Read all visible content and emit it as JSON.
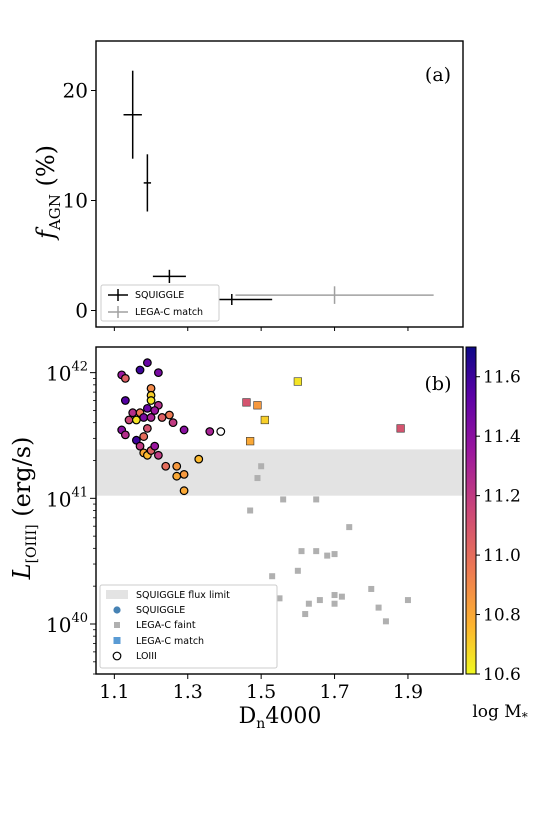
{
  "chart_data": [
    {
      "type": "scatter",
      "panel_label": "(a)",
      "ylabel_main": "f",
      "ylabel_sub": "AGN",
      "ylabel_tail": " (%)",
      "xlim": [
        1.05,
        2.05
      ],
      "ylim": [
        -1.5,
        24.5
      ],
      "yticks": [
        "0",
        "10",
        "20"
      ],
      "ytick_values": [
        0,
        10,
        20
      ],
      "grid": false,
      "legend_position": "bottom-left",
      "series": [
        {
          "name": "SQUIGGLE",
          "color": "#000000",
          "points": [
            {
              "x": 1.15,
              "y": 17.8,
              "xerr": [
                0.025,
                0.025
              ],
              "yerr": [
                4.0,
                4.0
              ]
            },
            {
              "x": 1.19,
              "y": 11.6,
              "xerr": [
                0.01,
                0.01
              ],
              "yerr": [
                2.6,
                2.6
              ]
            },
            {
              "x": 1.25,
              "y": 3.1,
              "xerr": [
                0.045,
                0.045
              ],
              "yerr": [
                0.6,
                0.6
              ]
            },
            {
              "x": 1.42,
              "y": 1.0,
              "xerr": [
                0.11,
                0.11
              ],
              "yerr": [
                0.5,
                0.5
              ]
            }
          ]
        },
        {
          "name": "LEGA-C match",
          "color": "#a0a0a0",
          "points": [
            {
              "x": 1.7,
              "y": 1.4,
              "xerr": [
                0.27,
                0.27
              ],
              "yerr": [
                0.8,
                0.8
              ]
            }
          ]
        }
      ]
    },
    {
      "type": "scatter",
      "panel_label": "(b)",
      "xlabel": "D",
      "xlabel_sub": "n",
      "xlabel_tail": "4000",
      "ylabel_main": "L",
      "ylabel_sub": "[OIII]",
      "ylabel_tail": " (erg/s)",
      "xlim": [
        1.05,
        2.05
      ],
      "xticks": [
        "1.1",
        "1.3",
        "1.5",
        "1.7",
        "1.9"
      ],
      "xtick_values": [
        1.1,
        1.3,
        1.5,
        1.7,
        1.9
      ],
      "y_scale": "log",
      "ylim": [
        4e+39,
        1.6e+42
      ],
      "yticks": [
        "10^42",
        "10^41",
        "10^40"
      ],
      "ytick_values": [
        1e+42,
        1e+41,
        1e+40
      ],
      "grid": false,
      "legend_position": "bottom-left",
      "flux_limit_band": [
        1.05e+41,
        2.45e+41
      ],
      "colorbar": {
        "label": "log M",
        "label_sub": "*",
        "range": [
          10.6,
          11.7
        ],
        "ticks": [
          "10.6",
          "10.8",
          "11.0",
          "11.2",
          "11.4",
          "11.6"
        ],
        "tick_values": [
          10.6,
          10.8,
          11.0,
          11.2,
          11.4,
          11.6
        ]
      },
      "legend": {
        "band": "SQUIGGLE flux limit",
        "squiggle": "SQUIGGLE",
        "faint": "LEGA-C faint",
        "match": "LEGA-C match",
        "loiii": "LOIII"
      },
      "squiggle_points": [
        {
          "x": 1.12,
          "y": 9.6e+41,
          "m": 11.35
        },
        {
          "x": 1.13,
          "y": 9e+41,
          "m": 11.05
        },
        {
          "x": 1.13,
          "y": 6e+41,
          "m": 11.55
        },
        {
          "x": 1.14,
          "y": 4.2e+41,
          "m": 11.15
        },
        {
          "x": 1.15,
          "y": 4.8e+41,
          "m": 11.25
        },
        {
          "x": 1.16,
          "y": 4.2e+41,
          "m": 10.65
        },
        {
          "x": 1.17,
          "y": 4.8e+41,
          "m": 10.95
        },
        {
          "x": 1.18,
          "y": 4.4e+41,
          "m": 11.45
        },
        {
          "x": 1.19,
          "y": 5.2e+41,
          "m": 11.5
        },
        {
          "x": 1.2,
          "y": 4.4e+41,
          "m": 11.3
        },
        {
          "x": 1.19,
          "y": 3.6e+41,
          "m": 11.1
        },
        {
          "x": 1.18,
          "y": 3.1e+41,
          "m": 11.0
        },
        {
          "x": 1.12,
          "y": 3.5e+41,
          "m": 11.4
        },
        {
          "x": 1.13,
          "y": 3.2e+41,
          "m": 11.25
        },
        {
          "x": 1.16,
          "y": 2.9e+41,
          "m": 11.6
        },
        {
          "x": 1.17,
          "y": 2.6e+41,
          "m": 11.2
        },
        {
          "x": 1.18,
          "y": 2.3e+41,
          "m": 10.8
        },
        {
          "x": 1.19,
          "y": 2.2e+41,
          "m": 10.75
        },
        {
          "x": 1.2,
          "y": 2.4e+41,
          "m": 11.05
        },
        {
          "x": 1.21,
          "y": 2.6e+41,
          "m": 11.35
        },
        {
          "x": 1.22,
          "y": 2.2e+41,
          "m": 11.2
        },
        {
          "x": 1.19,
          "y": 1.2e+42,
          "m": 11.5
        },
        {
          "x": 1.22,
          "y": 1e+42,
          "m": 11.45
        },
        {
          "x": 1.17,
          "y": 1.05e+42,
          "m": 11.6
        },
        {
          "x": 1.2,
          "y": 7.5e+41,
          "m": 10.9
        },
        {
          "x": 1.2,
          "y": 6.6e+41,
          "m": 10.7
        },
        {
          "x": 1.2,
          "y": 6e+41,
          "m": 10.65
        },
        {
          "x": 1.22,
          "y": 5.5e+41,
          "m": 11.25
        },
        {
          "x": 1.21,
          "y": 5e+41,
          "m": 11.35
        },
        {
          "x": 1.23,
          "y": 4.4e+41,
          "m": 11.05
        },
        {
          "x": 1.25,
          "y": 4.6e+41,
          "m": 10.95
        },
        {
          "x": 1.26,
          "y": 4e+41,
          "m": 11.2
        },
        {
          "x": 1.29,
          "y": 3.5e+41,
          "m": 11.4
        },
        {
          "x": 1.24,
          "y": 1.8e+41,
          "m": 11.0
        },
        {
          "x": 1.27,
          "y": 1.8e+41,
          "m": 10.85
        },
        {
          "x": 1.27,
          "y": 1.5e+41,
          "m": 10.8
        },
        {
          "x": 1.29,
          "y": 1.55e+41,
          "m": 10.85
        },
        {
          "x": 1.29,
          "y": 1.15e+41,
          "m": 10.8
        },
        {
          "x": 1.33,
          "y": 2.05e+41,
          "m": 10.75
        },
        {
          "x": 1.36,
          "y": 3.4e+41,
          "m": 11.3
        }
      ],
      "legac_faint": [
        {
          "x": 1.5,
          "y": 1.8e+41
        },
        {
          "x": 1.49,
          "y": 1.45e+41
        },
        {
          "x": 1.56,
          "y": 9.8e+40
        },
        {
          "x": 1.47,
          "y": 8e+40
        },
        {
          "x": 1.65,
          "y": 9.8e+40
        },
        {
          "x": 1.74,
          "y": 5.9e+40
        },
        {
          "x": 1.61,
          "y": 3.8e+40
        },
        {
          "x": 1.65,
          "y": 3.8e+40
        },
        {
          "x": 1.68,
          "y": 3.5e+40
        },
        {
          "x": 1.7,
          "y": 3.6e+40
        },
        {
          "x": 1.6,
          "y": 2.65e+40
        },
        {
          "x": 1.53,
          "y": 2.4e+40
        },
        {
          "x": 1.8,
          "y": 1.9e+40
        },
        {
          "x": 1.7,
          "y": 1.7e+40
        },
        {
          "x": 1.72,
          "y": 1.65e+40
        },
        {
          "x": 1.55,
          "y": 1.6e+40
        },
        {
          "x": 1.66,
          "y": 1.55e+40
        },
        {
          "x": 1.63,
          "y": 1.45e+40
        },
        {
          "x": 1.7,
          "y": 1.45e+40
        },
        {
          "x": 1.82,
          "y": 1.35e+40
        },
        {
          "x": 1.9,
          "y": 1.55e+40
        },
        {
          "x": 1.62,
          "y": 1.2e+40
        },
        {
          "x": 1.84,
          "y": 1.05e+40
        }
      ],
      "legac_match": [
        {
          "x": 1.6,
          "y": 8.5e+41,
          "m": 10.65
        },
        {
          "x": 1.46,
          "y": 5.8e+41,
          "m": 11.1
        },
        {
          "x": 1.49,
          "y": 5.5e+41,
          "m": 10.85
        },
        {
          "x": 1.51,
          "y": 4.2e+41,
          "m": 10.7
        },
        {
          "x": 1.47,
          "y": 2.85e+41,
          "m": 10.8
        },
        {
          "x": 1.88,
          "y": 3.6e+41,
          "m": 11.1
        }
      ],
      "loiii_open": [
        {
          "x": 1.39,
          "y": 3.4e+41
        }
      ]
    }
  ]
}
